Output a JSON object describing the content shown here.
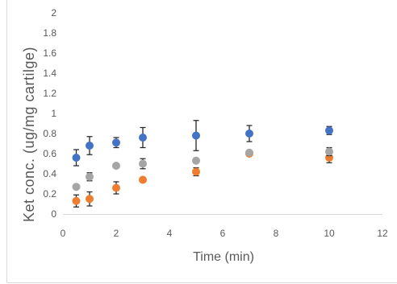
{
  "chart_data": {
    "type": "scatter",
    "xlabel": "Time (min)",
    "ylabel": "Ket conc. (ug/mg cartilge)",
    "xlim": [
      0,
      12
    ],
    "ylim": [
      0,
      2
    ],
    "x_ticks": [
      "0",
      "2",
      "4",
      "6",
      "8",
      "10",
      "12"
    ],
    "y_ticks": [
      "0",
      "0.2",
      "0.4",
      "0.6",
      "0.8",
      "1",
      "1.2",
      "1.4",
      "1.6",
      "1.8",
      "2"
    ],
    "grid": false,
    "legend": "none",
    "error_bars": true,
    "error_bar_color": "#262626",
    "x": [
      0.5,
      1,
      2,
      3,
      5,
      7,
      10
    ],
    "series": [
      {
        "color": "#4472C4",
        "values": [
          0.56,
          0.68,
          0.71,
          0.76,
          0.78,
          0.8,
          0.83
        ],
        "errors": [
          0.08,
          0.09,
          0.05,
          0.1,
          0.15,
          0.08,
          0.04
        ]
      },
      {
        "color": "#ED7D31",
        "values": [
          0.13,
          0.15,
          0.26,
          0.34,
          0.42,
          0.6,
          0.56
        ],
        "errors": [
          0.06,
          0.07,
          0.06,
          0.02,
          0.04,
          0.01,
          0.05
        ]
      },
      {
        "color": "#A5A5A5",
        "values": [
          0.27,
          0.37,
          0.48,
          0.5,
          0.53,
          0.61,
          0.62
        ],
        "errors": [
          0.02,
          0.04,
          0.02,
          0.05,
          0.02,
          0.02,
          0.04
        ]
      }
    ]
  }
}
